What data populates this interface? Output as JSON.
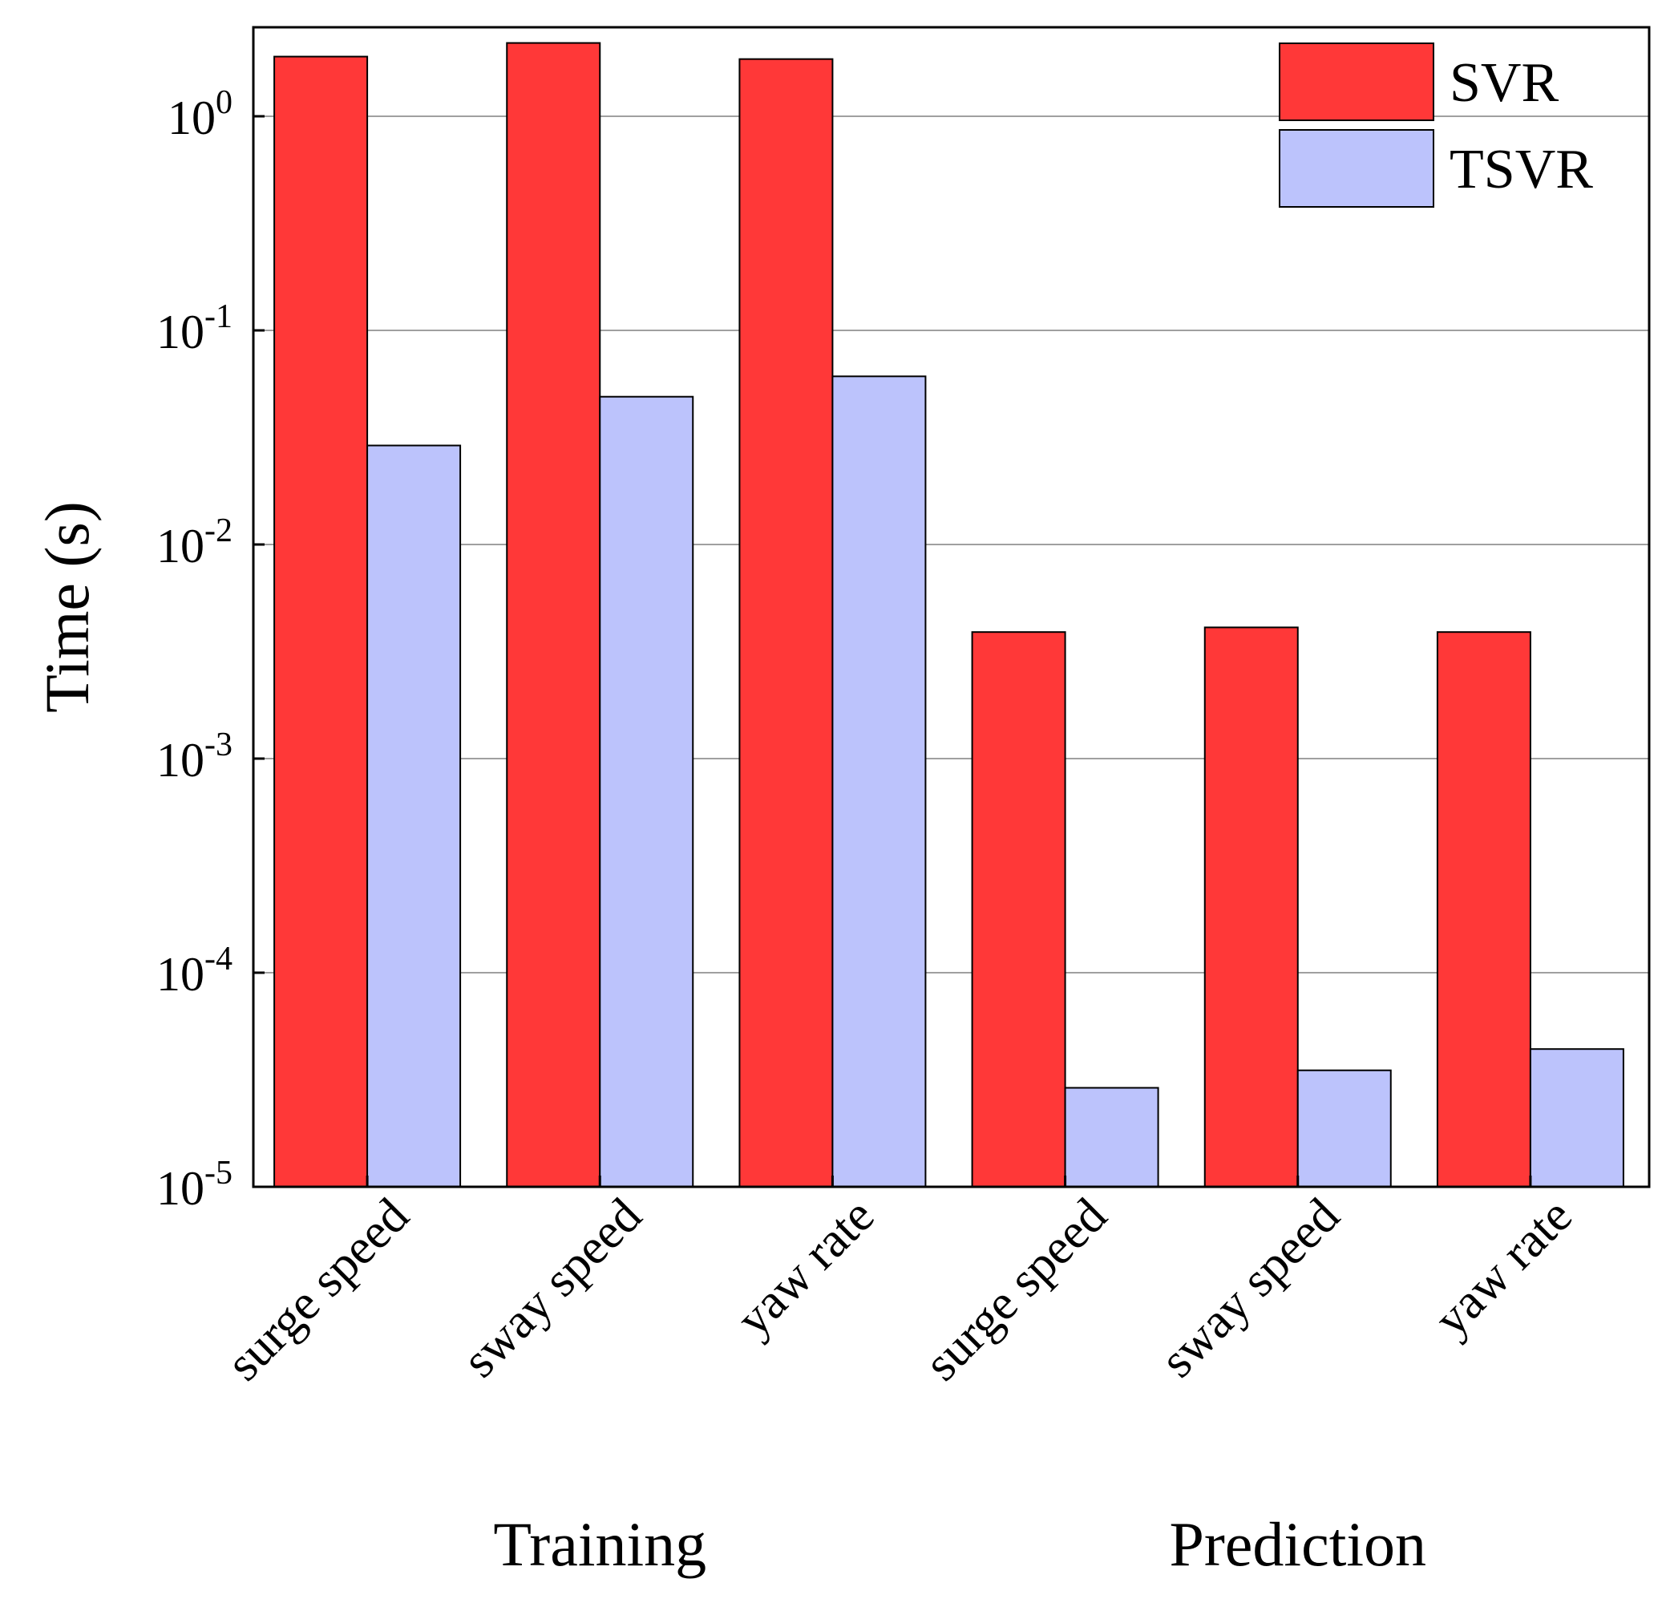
{
  "chart_data": {
    "type": "bar",
    "title": "",
    "ylabel": "Time (s)",
    "yscale": "log",
    "ylim": [
      1e-05,
      2.5
    ],
    "y_ticks": [
      {
        "value": 1,
        "base": "10",
        "exp": "0"
      },
      {
        "value": 0.1,
        "base": "10",
        "exp": "-1"
      },
      {
        "value": 0.01,
        "base": "10",
        "exp": "-2"
      },
      {
        "value": 0.001,
        "base": "10",
        "exp": "-3"
      },
      {
        "value": 0.0001,
        "base": "10",
        "exp": "-4"
      },
      {
        "value": 1e-05,
        "base": "10",
        "exp": "-5"
      }
    ],
    "grid": "horizontal",
    "categories": [
      "surge speed",
      "sway speed",
      "yaw rate",
      "surge speed",
      "sway speed",
      "yaw rate"
    ],
    "groups": [
      {
        "label": "Training",
        "category_indices": [
          0,
          1,
          2
        ]
      },
      {
        "label": "Prediction",
        "category_indices": [
          3,
          4,
          5
        ]
      }
    ],
    "series": [
      {
        "name": "SVR",
        "color": "#ff3838",
        "values": [
          1.9,
          2.2,
          1.85,
          0.0039,
          0.0041,
          0.0039
        ]
      },
      {
        "name": "TSVR",
        "color": "#bcc3fc",
        "values": [
          0.029,
          0.049,
          0.061,
          2.9e-05,
          3.5e-05,
          4.4e-05
        ]
      }
    ],
    "legend": {
      "position": "top-right",
      "entries": [
        "SVR",
        "TSVR"
      ]
    }
  }
}
